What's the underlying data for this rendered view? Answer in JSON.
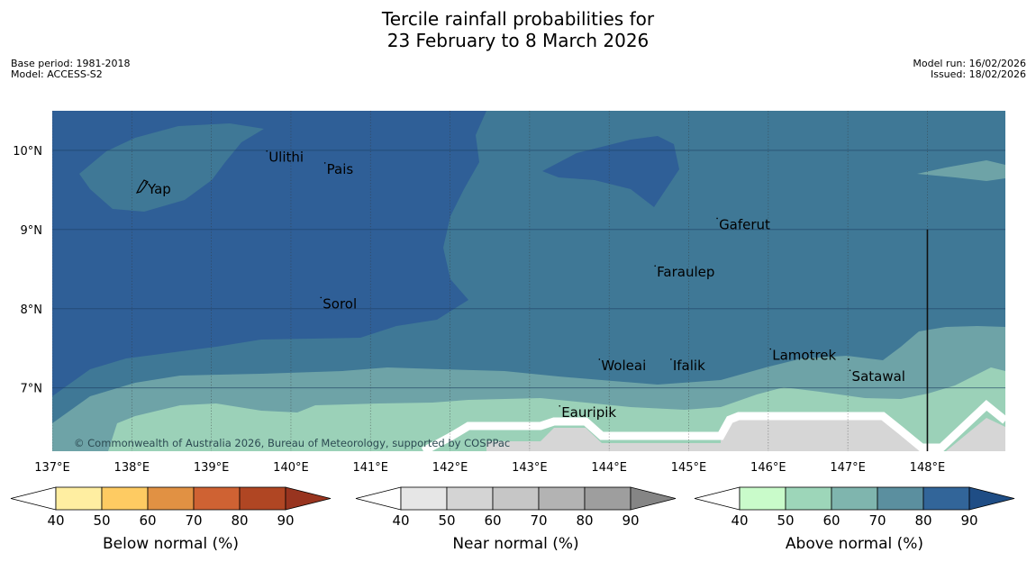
{
  "title": {
    "line1": "Tercile rainfall probabilities for",
    "line2": "23 February to 8 March 2026"
  },
  "meta_left": {
    "base_period": "Base period: 1981-2018",
    "model": "Model: ACCESS-S2"
  },
  "meta_right": {
    "model_run": "Model run: 16/02/2026",
    "issued": "Issued: 18/02/2026"
  },
  "map": {
    "extent": {
      "lon_min": 137.0,
      "lon_max": 148.98,
      "lat_min": 6.2,
      "lat_max": 10.5
    },
    "lon_ticks": [
      137,
      138,
      139,
      140,
      141,
      142,
      143,
      144,
      145,
      146,
      147,
      148
    ],
    "lon_tick_labels": [
      "137°E",
      "138°E",
      "139°E",
      "140°E",
      "141°E",
      "142°E",
      "143°E",
      "144°E",
      "145°E",
      "146°E",
      "147°E",
      "148°E"
    ],
    "lat_ticks": [
      10,
      9,
      8,
      7
    ],
    "lat_tick_labels": [
      "10°N",
      "9°N",
      "8°N",
      "7°N"
    ],
    "places": [
      {
        "name": "Yap",
        "lon": 138.2,
        "lat": 9.5
      },
      {
        "name": "Ulithi",
        "lon": 139.72,
        "lat": 9.9
      },
      {
        "name": "Pais",
        "lon": 140.45,
        "lat": 9.75
      },
      {
        "name": "Gaferut",
        "lon": 145.38,
        "lat": 9.05
      },
      {
        "name": "Faraulep",
        "lon": 144.6,
        "lat": 8.45
      },
      {
        "name": "Sorol",
        "lon": 140.4,
        "lat": 8.05
      },
      {
        "name": "Lamotrek",
        "lon": 146.05,
        "lat": 7.4
      },
      {
        "name": "Woleai",
        "lon": 143.9,
        "lat": 7.27
      },
      {
        "name": "Ifalik",
        "lon": 144.8,
        "lat": 7.27
      },
      {
        "name": "Satawal",
        "lon": 147.05,
        "lat": 7.13
      },
      {
        "name": "Eauripik",
        "lon": 143.4,
        "lat": 6.68
      }
    ],
    "copyright": "© Commonwealth of Australia 2026, Bureau of Meteorology, supported by COSPPac",
    "colors": {
      "above_80_90": "#2f5f97",
      "above_70_80": "#3f7896",
      "above_60_70": "#6ea3a7",
      "above_50_60": "#9bd1b8",
      "near_normal": "#d6d6d6",
      "no_signal": "#ffffff"
    }
  },
  "colorbars": [
    {
      "label": "Below normal (%)",
      "ticks": [
        "40",
        "50",
        "60",
        "70",
        "80",
        "90"
      ],
      "colors": [
        "#ffeea1",
        "#fecb62",
        "#e19143",
        "#cf6233",
        "#b04623"
      ],
      "tail_colors": [
        "#ffffff",
        "#98341f"
      ]
    },
    {
      "label": "Near normal (%)",
      "ticks": [
        "40",
        "50",
        "60",
        "70",
        "80",
        "90"
      ],
      "colors": [
        "#e6e6e6",
        "#d4d4d4",
        "#c6c6c6",
        "#b3b3b3",
        "#9e9e9e"
      ],
      "tail_colors": [
        "#ffffff",
        "#858585"
      ]
    },
    {
      "label": "Above normal (%)",
      "ticks": [
        "40",
        "50",
        "60",
        "70",
        "80",
        "90"
      ],
      "colors": [
        "#c9fbca",
        "#9dd6b9",
        "#7fb5ae",
        "#5b8f9f",
        "#326599"
      ],
      "tail_colors": [
        "#ffffff",
        "#1f4d85"
      ]
    }
  ]
}
